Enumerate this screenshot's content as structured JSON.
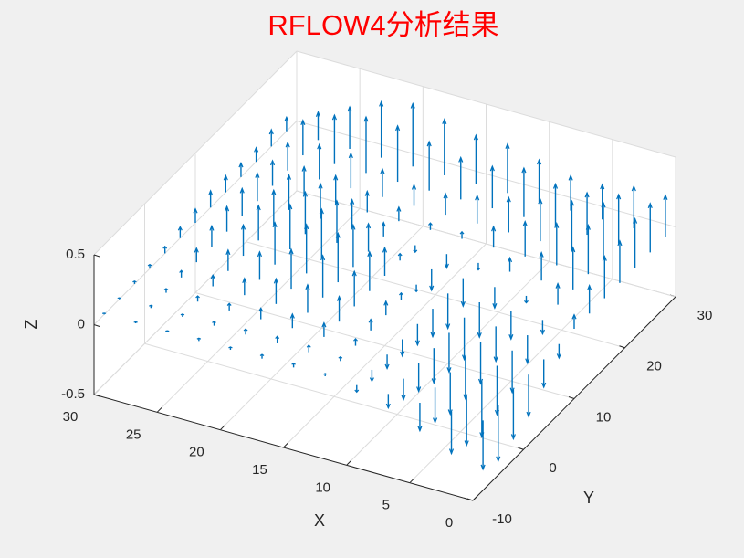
{
  "chart_data": {
    "type": "quiver3",
    "title": "RFLOW4分析结果",
    "xlabel": "X",
    "ylabel": "Y",
    "zlabel": "Z",
    "color": "#0072bd",
    "grid": true,
    "xlim": [
      0,
      30
    ],
    "ylim": [
      -10,
      30
    ],
    "zlim": [
      -0.5,
      0.5
    ],
    "xticks": [
      0,
      5,
      10,
      15,
      20,
      25,
      30
    ],
    "yticks": [
      -10,
      0,
      10,
      20,
      30
    ],
    "zticks": [
      -0.5,
      0,
      0.5
    ],
    "x": [
      0,
      2.5,
      5,
      7.5,
      10,
      12.5,
      15,
      17.5,
      20,
      22.5,
      25,
      27.5,
      30
    ],
    "y": [
      -8,
      -5,
      -2,
      1,
      4,
      7,
      10,
      13,
      16,
      19,
      22,
      25,
      28
    ],
    "w": [
      [
        -0.35,
        -0.3,
        -0.2,
        -0.1,
        -0.05,
        0.02,
        0.03,
        0.03,
        0.02,
        0.02,
        0.01,
        0.01,
        0.01
      ],
      [
        -0.4,
        -0.35,
        -0.25,
        -0.15,
        -0.08,
        0.03,
        0.05,
        0.05,
        0.04,
        0.03,
        0.02,
        0.02,
        0.01
      ],
      [
        -0.35,
        -0.4,
        -0.3,
        -0.2,
        -0.1,
        0.05,
        0.1,
        0.1,
        0.08,
        0.05,
        0.04,
        0.03,
        0.02
      ],
      [
        -0.3,
        -0.35,
        -0.3,
        -0.25,
        -0.12,
        0.08,
        0.18,
        0.2,
        0.18,
        0.12,
        0.08,
        0.05,
        0.03
      ],
      [
        -0.2,
        -0.3,
        -0.3,
        -0.28,
        -0.15,
        0.1,
        0.25,
        0.3,
        0.28,
        0.2,
        0.15,
        0.1,
        0.05
      ],
      [
        -0.1,
        -0.2,
        -0.25,
        -0.3,
        -0.2,
        0.05,
        0.28,
        0.35,
        0.35,
        0.3,
        0.22,
        0.15,
        0.08
      ],
      [
        0.1,
        -0.1,
        -0.2,
        -0.25,
        -0.25,
        -0.05,
        0.2,
        0.3,
        0.35,
        0.32,
        0.25,
        0.18,
        0.1
      ],
      [
        0.2,
        0.15,
        -0.05,
        -0.15,
        -0.2,
        -0.15,
        0.05,
        0.2,
        0.3,
        0.3,
        0.25,
        0.2,
        0.12
      ],
      [
        0.3,
        0.3,
        0.2,
        0.1,
        -0.05,
        -0.1,
        -0.05,
        0.1,
        0.2,
        0.25,
        0.25,
        0.2,
        0.12
      ],
      [
        0.3,
        0.35,
        0.3,
        0.25,
        0.15,
        0.05,
        0.05,
        0.1,
        0.15,
        0.2,
        0.2,
        0.18,
        0.1
      ],
      [
        0.35,
        0.4,
        0.35,
        0.3,
        0.25,
        0.2,
        0.15,
        0.15,
        0.2,
        0.25,
        0.25,
        0.2,
        0.1
      ],
      [
        0.35,
        0.35,
        0.3,
        0.3,
        0.35,
        0.3,
        0.3,
        0.35,
        0.4,
        0.4,
        0.35,
        0.25,
        0.12
      ],
      [
        0.3,
        0.3,
        0.25,
        0.25,
        0.3,
        0.35,
        0.35,
        0.4,
        0.45,
        0.4,
        0.3,
        0.2,
        0.1
      ]
    ]
  }
}
